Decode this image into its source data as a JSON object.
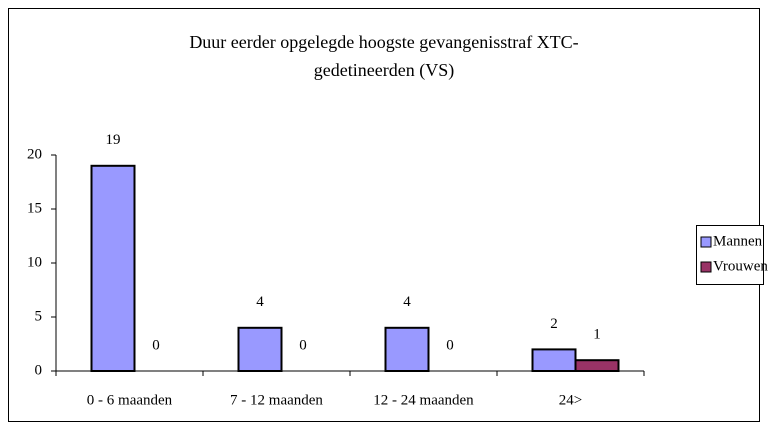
{
  "chart_data": {
    "type": "bar",
    "title": [
      "Duur eerder opgelegde hoogste gevangenisstraf XTC-",
      "gedetineerden (VS)"
    ],
    "categories": [
      "0 - 6 maanden",
      "7 - 12 maanden",
      "12 - 24 maanden",
      "24>"
    ],
    "series": [
      {
        "name": "Mannen",
        "color": "#9999ff",
        "values": [
          19,
          4,
          4,
          2
        ]
      },
      {
        "name": "Vrouwen",
        "color": "#993366",
        "values": [
          0,
          0,
          0,
          1
        ]
      }
    ],
    "ylim": [
      0,
      20
    ],
    "yticks": [
      0,
      5,
      10,
      15,
      20
    ],
    "grid": false,
    "legend": "right"
  }
}
